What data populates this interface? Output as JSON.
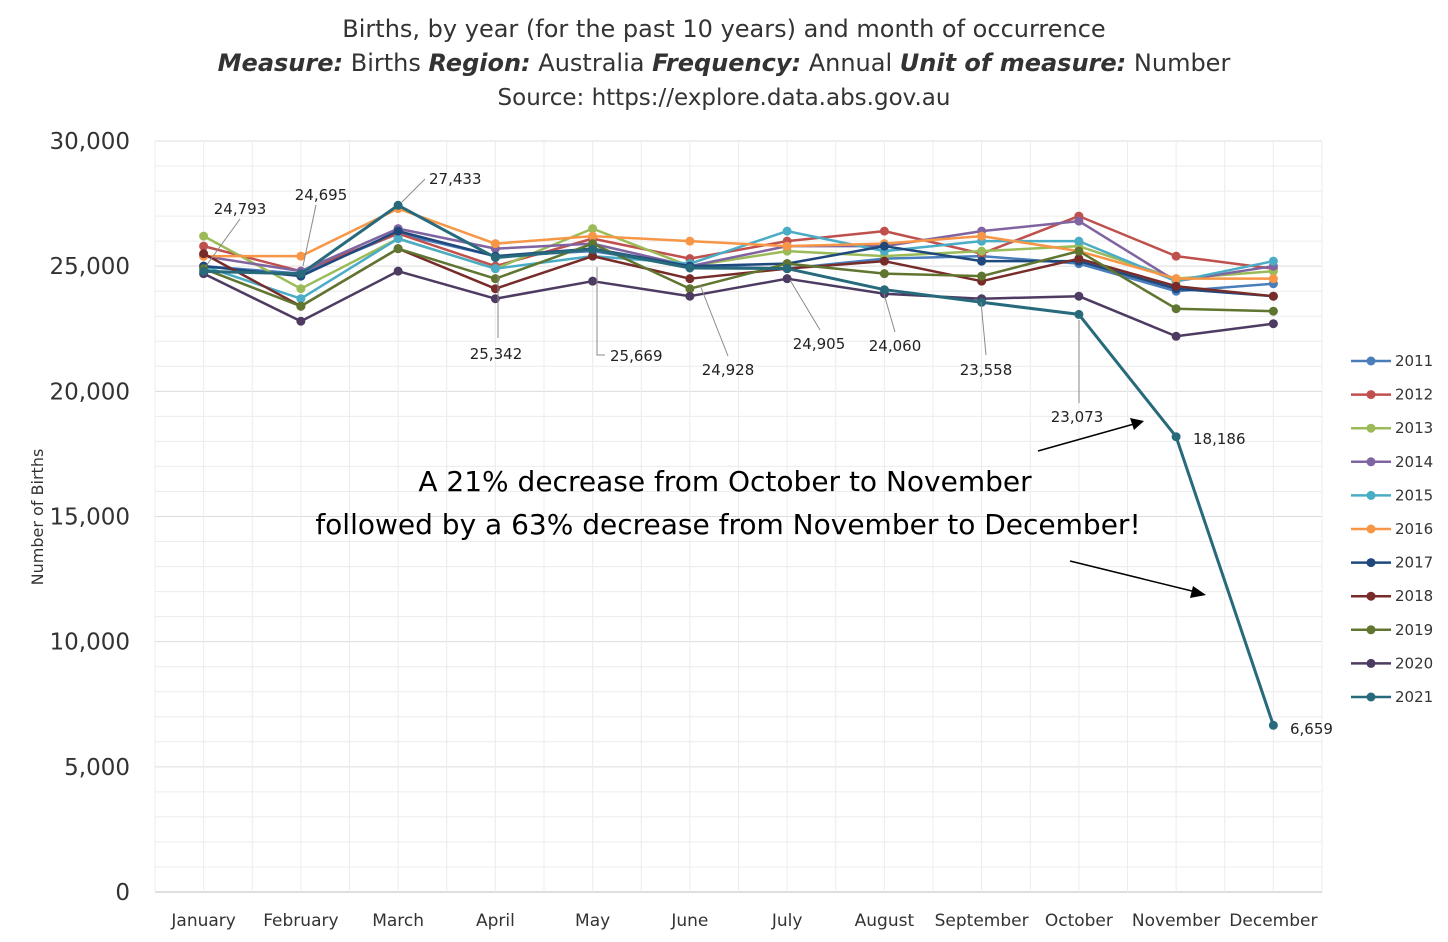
{
  "chart_data": {
    "type": "line",
    "title": "Births, by year (for the past 10 years) and month of occurrence",
    "subtitle": {
      "measure_key": "Measure:",
      "measure_val": "Births",
      "region_key": "Region:",
      "region_val": "Australia",
      "frequency_key": "Frequency:",
      "frequency_val": "Annual",
      "unit_key": "Unit of measure:",
      "unit_val": "Number"
    },
    "source": "Source: https://explore.data.abs.gov.au",
    "ylabel": "Number of Births",
    "xlabel": "",
    "ylim": [
      0,
      30000
    ],
    "yticks": [
      0,
      5000,
      10000,
      15000,
      20000,
      25000,
      30000
    ],
    "ytick_labels": [
      "0",
      "5,000",
      "10,000",
      "15,000",
      "20,000",
      "25,000",
      "30,000"
    ],
    "grid": true,
    "legend_position": "right",
    "categories": [
      "January",
      "February",
      "March",
      "April",
      "May",
      "June",
      "July",
      "August",
      "September",
      "October",
      "November",
      "December"
    ],
    "series": [
      {
        "name": "2011",
        "color": "#4a7ebb",
        "values": [
          25000,
          24700,
          26300,
          25400,
          25600,
          25000,
          24900,
          25300,
          25400,
          25100,
          24000,
          24300
        ]
      },
      {
        "name": "2012",
        "color": "#c0504d",
        "values": [
          25800,
          24800,
          26300,
          25000,
          26100,
          25300,
          26000,
          26400,
          25500,
          27000,
          25400,
          24900
        ]
      },
      {
        "name": "2013",
        "color": "#9bbb59",
        "values": [
          26200,
          24100,
          26100,
          24900,
          26500,
          25000,
          25600,
          25400,
          25600,
          25800,
          24500,
          24800
        ]
      },
      {
        "name": "2014",
        "color": "#8064a2",
        "values": [
          25400,
          24800,
          26500,
          25700,
          25900,
          25000,
          25800,
          25800,
          26400,
          26800,
          24400,
          25000
        ]
      },
      {
        "name": "2015",
        "color": "#4bacc6",
        "values": [
          25000,
          23700,
          26100,
          24900,
          25400,
          25100,
          26400,
          25600,
          26000,
          26000,
          24400,
          25200
        ]
      },
      {
        "name": "2016",
        "color": "#f79646",
        "values": [
          25400,
          25400,
          27300,
          25900,
          26200,
          26000,
          25800,
          25900,
          26200,
          25600,
          24500,
          24500
        ]
      },
      {
        "name": "2017",
        "color": "#1f497d",
        "values": [
          25000,
          24600,
          26400,
          25400,
          25700,
          25000,
          25100,
          25800,
          25200,
          25200,
          24100,
          23800
        ]
      },
      {
        "name": "2018",
        "color": "#772c2a",
        "values": [
          25500,
          23400,
          25700,
          24100,
          25400,
          24500,
          24900,
          25200,
          24400,
          25300,
          24200,
          23800
        ]
      },
      {
        "name": "2019",
        "color": "#5f7530",
        "values": [
          24900,
          23400,
          25700,
          24500,
          25900,
          24100,
          25100,
          24700,
          24600,
          25600,
          23300,
          23200
        ]
      },
      {
        "name": "2020",
        "color": "#4d3b62",
        "values": [
          24700,
          22800,
          24800,
          23700,
          24400,
          23800,
          24500,
          23900,
          23700,
          23800,
          22200,
          22700
        ]
      },
      {
        "name": "2021",
        "color": "#276a7c",
        "values": [
          24793,
          24695,
          27433,
          25342,
          25669,
          24928,
          24905,
          24060,
          23558,
          23073,
          18186,
          6659
        ]
      }
    ],
    "data_labels": [
      {
        "series": "2021",
        "month": "January",
        "text": "24,793"
      },
      {
        "series": "2021",
        "month": "February",
        "text": "24,695"
      },
      {
        "series": "2021",
        "month": "March",
        "text": "27,433"
      },
      {
        "series": "2021",
        "month": "April",
        "text": "25,342"
      },
      {
        "series": "2021",
        "month": "May",
        "text": "25,669"
      },
      {
        "series": "2021",
        "month": "June",
        "text": "24,928"
      },
      {
        "series": "2021",
        "month": "July",
        "text": "24,905"
      },
      {
        "series": "2021",
        "month": "August",
        "text": "24,060"
      },
      {
        "series": "2021",
        "month": "September",
        "text": "23,558"
      },
      {
        "series": "2021",
        "month": "October",
        "text": "23,073"
      },
      {
        "series": "2021",
        "month": "November",
        "text": "18,186"
      },
      {
        "series": "2021",
        "month": "December",
        "text": "6,659"
      }
    ],
    "annotation": {
      "line1": "A 21% decrease from October to November",
      "line2": "followed by a 63% decrease from November to December!"
    }
  }
}
